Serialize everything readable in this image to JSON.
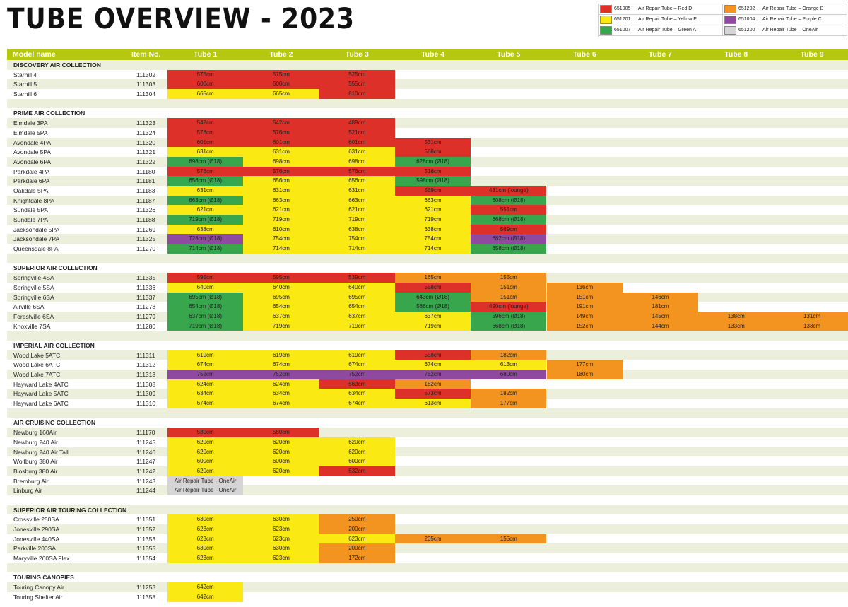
{
  "title": "TUBE OVERVIEW - 2023",
  "colors": {
    "R": "#dc3028",
    "Y": "#fbe914",
    "G": "#38a64c",
    "O": "#f39320",
    "P": "#8f4aa0",
    "A": "#d5d5d5"
  },
  "legend": [
    {
      "code": "651005",
      "label": "Air Repair Tube – Red D",
      "color": "R"
    },
    {
      "code": "651201",
      "label": "Air Repair Tube – Yellow E",
      "color": "Y"
    },
    {
      "code": "651007",
      "label": "Air Repair Tube – Green A",
      "color": "G"
    },
    {
      "code": "651202",
      "label": "Air Repair Tube – Orange B",
      "color": "O"
    },
    {
      "code": "651004",
      "label": "Air Repair Tube – Purple C",
      "color": "P"
    },
    {
      "code": "651200",
      "label": "Air Repair Tube – OneAir",
      "color": "A"
    }
  ],
  "headers": [
    "Model name",
    "Item No.",
    "Tube 1",
    "Tube 2",
    "Tube 3",
    "Tube 4",
    "Tube 5",
    "Tube 6",
    "Tube 7",
    "Tube 8",
    "Tube 9"
  ],
  "sections": [
    {
      "name": "DISCOVERY AIR COLLECTION",
      "rows": [
        {
          "model": "Starhill 4",
          "item": "111302",
          "cells": [
            [
              "575cm",
              "R"
            ],
            [
              "575cm",
              "R"
            ],
            [
              "525cm",
              "R"
            ]
          ]
        },
        {
          "model": "Starhill 5",
          "item": "111303",
          "cells": [
            [
              "600cm",
              "R"
            ],
            [
              "600cm",
              "R"
            ],
            [
              "555cm",
              "R"
            ]
          ]
        },
        {
          "model": "Starhill 6",
          "item": "111304",
          "cells": [
            [
              "665cm",
              "Y"
            ],
            [
              "665cm",
              "Y"
            ],
            [
              "610cm",
              "R"
            ]
          ]
        }
      ]
    },
    {
      "name": "PRIME AIR COLLECTION",
      "rows": [
        {
          "model": "Elmdale 3PA",
          "item": "111323",
          "cells": [
            [
              "542cm",
              "R"
            ],
            [
              "542cm",
              "R"
            ],
            [
              "489cm",
              "R"
            ]
          ]
        },
        {
          "model": "Elmdale 5PA",
          "item": "111324",
          "cells": [
            [
              "576cm",
              "R"
            ],
            [
              "576cm",
              "R"
            ],
            [
              "521cm",
              "R"
            ]
          ]
        },
        {
          "model": "Avondale 4PA",
          "item": "111320",
          "cells": [
            [
              "601cm",
              "R"
            ],
            [
              "601cm",
              "R"
            ],
            [
              "601cm",
              "R"
            ],
            [
              "531cm",
              "R"
            ]
          ]
        },
        {
          "model": "Avondale 5PA",
          "item": "111321",
          "cells": [
            [
              "631cm",
              "Y"
            ],
            [
              "631cm",
              "Y"
            ],
            [
              "631cm",
              "Y"
            ],
            [
              "568cm",
              "R"
            ]
          ]
        },
        {
          "model": "Avondale 6PA",
          "item": "111322",
          "cells": [
            [
              "698cm (Ø18)",
              "G"
            ],
            [
              "698cm",
              "Y"
            ],
            [
              "698cm",
              "Y"
            ],
            [
              "628cm (Ø18)",
              "G"
            ]
          ]
        },
        {
          "model": "Parkdale 4PA",
          "item": "111180",
          "cells": [
            [
              "576cm",
              "R"
            ],
            [
              "576cm",
              "R"
            ],
            [
              "576cm",
              "R"
            ],
            [
              "516cm",
              "R"
            ]
          ]
        },
        {
          "model": "Parkdale 6PA",
          "item": "111181",
          "cells": [
            [
              "656cm (Ø18)",
              "G"
            ],
            [
              "656cm",
              "Y"
            ],
            [
              "656cm",
              "Y"
            ],
            [
              "598cm (Ø18)",
              "G"
            ]
          ]
        },
        {
          "model": "Oakdale 5PA",
          "item": "111183",
          "cells": [
            [
              "631cm",
              "Y"
            ],
            [
              "631cm",
              "Y"
            ],
            [
              "631cm",
              "Y"
            ],
            [
              "569cm",
              "R"
            ],
            [
              "481cm (lounge)",
              "R"
            ]
          ]
        },
        {
          "model": "Knightdale 8PA",
          "item": "111187",
          "cells": [
            [
              "663cm (Ø18)",
              "G"
            ],
            [
              "663cm",
              "Y"
            ],
            [
              "663cm",
              "Y"
            ],
            [
              "663cm",
              "Y"
            ],
            [
              "608cm (Ø18)",
              "G"
            ]
          ]
        },
        {
          "model": "Sundale 5PA",
          "item": "111326",
          "cells": [
            [
              "621cm",
              "Y"
            ],
            [
              "621cm",
              "Y"
            ],
            [
              "621cm",
              "Y"
            ],
            [
              "621cm",
              "Y"
            ],
            [
              "551cm",
              "R"
            ]
          ]
        },
        {
          "model": "Sundale 7PA",
          "item": "111188",
          "cells": [
            [
              "719cm (Ø18)",
              "G"
            ],
            [
              "719cm",
              "Y"
            ],
            [
              "719cm",
              "Y"
            ],
            [
              "719cm",
              "Y"
            ],
            [
              "668cm (Ø18)",
              "G"
            ]
          ]
        },
        {
          "model": "Jacksondale 5PA",
          "item": "111269",
          "cells": [
            [
              "638cm",
              "Y"
            ],
            [
              "610cm",
              "Y"
            ],
            [
              "638cm",
              "Y"
            ],
            [
              "638cm",
              "Y"
            ],
            [
              "569cm",
              "R"
            ]
          ]
        },
        {
          "model": "Jacksondale 7PA",
          "item": "111325",
          "cells": [
            [
              "728cm (Ø18)",
              "P"
            ],
            [
              "754cm",
              "Y"
            ],
            [
              "754cm",
              "Y"
            ],
            [
              "754cm",
              "Y"
            ],
            [
              "682cm (Ø18)",
              "P"
            ]
          ]
        },
        {
          "model": "Queensdale 8PA",
          "item": "111270",
          "cells": [
            [
              "714cm (Ø18)",
              "G"
            ],
            [
              "714cm",
              "Y"
            ],
            [
              "714cm",
              "Y"
            ],
            [
              "714cm",
              "Y"
            ],
            [
              "658cm (Ø18)",
              "G"
            ]
          ]
        }
      ]
    },
    {
      "name": "SUPERIOR AIR COLLECTION",
      "rows": [
        {
          "model": "Springville 4SA",
          "item": "111335",
          "cells": [
            [
              "595cm",
              "R"
            ],
            [
              "595cm",
              "R"
            ],
            [
              "539cm",
              "R"
            ],
            [
              "165cm",
              "O"
            ],
            [
              "155cm",
              "O"
            ]
          ]
        },
        {
          "model": "Springville 5SA",
          "item": "111336",
          "cells": [
            [
              "640cm",
              "Y"
            ],
            [
              "640cm",
              "Y"
            ],
            [
              "640cm",
              "Y"
            ],
            [
              "558cm",
              "R"
            ],
            [
              "151cm",
              "O"
            ],
            [
              "136cm",
              "O"
            ]
          ]
        },
        {
          "model": "Springville 6SA",
          "item": "111337",
          "cells": [
            [
              "695cm (Ø18)",
              "G"
            ],
            [
              "695cm",
              "Y"
            ],
            [
              "695cm",
              "Y"
            ],
            [
              "643cm (Ø18)",
              "G"
            ],
            [
              "151cm",
              "O"
            ],
            [
              "151cm",
              "O"
            ],
            [
              "146cm",
              "O"
            ]
          ]
        },
        {
          "model": "Airville 6SA",
          "item": "111278",
          "cells": [
            [
              "654cm (Ø18)",
              "G"
            ],
            [
              "654cm",
              "Y"
            ],
            [
              "654cm",
              "Y"
            ],
            [
              "586cm (Ø18)",
              "G"
            ],
            [
              "490cm (lounge)",
              "R"
            ],
            [
              "191cm",
              "O"
            ],
            [
              "181cm",
              "O"
            ]
          ]
        },
        {
          "model": "Forestville 6SA",
          "item": "111279",
          "cells": [
            [
              "637cm (Ø18)",
              "G"
            ],
            [
              "637cm",
              "Y"
            ],
            [
              "637cm",
              "Y"
            ],
            [
              "637cm",
              "Y"
            ],
            [
              "596cm (Ø18)",
              "G"
            ],
            [
              "149cm",
              "O"
            ],
            [
              "145cm",
              "O"
            ],
            [
              "138cm",
              "O"
            ],
            [
              "131cm",
              "O"
            ]
          ]
        },
        {
          "model": "Knoxville 7SA",
          "item": "111280",
          "cells": [
            [
              "719cm (Ø18)",
              "G"
            ],
            [
              "719cm",
              "Y"
            ],
            [
              "719cm",
              "Y"
            ],
            [
              "719cm",
              "Y"
            ],
            [
              "668cm (Ø18)",
              "G"
            ],
            [
              "152cm",
              "O"
            ],
            [
              "144cm",
              "O"
            ],
            [
              "133cm",
              "O"
            ],
            [
              "133cm",
              "O"
            ]
          ]
        }
      ]
    },
    {
      "name": "IMPERIAL AIR COLLECTION",
      "rows": [
        {
          "model": "Wood Lake 5ATC",
          "item": "111311",
          "cells": [
            [
              "619cm",
              "Y"
            ],
            [
              "619cm",
              "Y"
            ],
            [
              "619cm",
              "Y"
            ],
            [
              "558cm",
              "R"
            ],
            [
              "182cm",
              "O"
            ]
          ]
        },
        {
          "model": "Wood Lake 6ATC",
          "item": "111312",
          "cells": [
            [
              "674cm",
              "Y"
            ],
            [
              "674cm",
              "Y"
            ],
            [
              "674cm",
              "Y"
            ],
            [
              "674cm",
              "Y"
            ],
            [
              "613cm",
              "Y"
            ],
            [
              "177cm",
              "O"
            ]
          ]
        },
        {
          "model": "Wood Lake 7ATC",
          "item": "111313",
          "cells": [
            [
              "752cm",
              "P"
            ],
            [
              "752cm",
              "P"
            ],
            [
              "752cm",
              "P"
            ],
            [
              "752cm",
              "P"
            ],
            [
              "680cm",
              "P"
            ],
            [
              "180cm",
              "O"
            ]
          ]
        },
        {
          "model": "Hayward Lake 4ATC",
          "item": "111308",
          "cells": [
            [
              "624cm",
              "Y"
            ],
            [
              "624cm",
              "Y"
            ],
            [
              "563cm",
              "R"
            ],
            [
              "182cm",
              "O"
            ]
          ]
        },
        {
          "model": "Hayward Lake 5ATC",
          "item": "111309",
          "cells": [
            [
              "634cm",
              "Y"
            ],
            [
              "634cm",
              "Y"
            ],
            [
              "634cm",
              "Y"
            ],
            [
              "573cm",
              "R"
            ],
            [
              "182cm",
              "O"
            ]
          ]
        },
        {
          "model": "Hayward Lake 6ATC",
          "item": "111310",
          "cells": [
            [
              "674cm",
              "Y"
            ],
            [
              "674cm",
              "Y"
            ],
            [
              "674cm",
              "Y"
            ],
            [
              "613cm",
              "Y"
            ],
            [
              "177cm",
              "O"
            ]
          ]
        }
      ]
    },
    {
      "name": "AIR CRUISING COLLECTION",
      "rows": [
        {
          "model": "Newburg 160Air",
          "item": "111170",
          "cells": [
            [
              "580cm",
              "R"
            ],
            [
              "580cm",
              "R"
            ]
          ]
        },
        {
          "model": "Newburg 240 Air",
          "item": "111245",
          "cells": [
            [
              "620cm",
              "Y"
            ],
            [
              "620cm",
              "Y"
            ],
            [
              "620cm",
              "Y"
            ]
          ]
        },
        {
          "model": "Newburg 240 Air Tall",
          "item": "111246",
          "cells": [
            [
              "620cm",
              "Y"
            ],
            [
              "620cm",
              "Y"
            ],
            [
              "620cm",
              "Y"
            ]
          ]
        },
        {
          "model": "Wolfburg 380 Air",
          "item": "111247",
          "cells": [
            [
              "600cm",
              "Y"
            ],
            [
              "600cm",
              "Y"
            ],
            [
              "600cm",
              "Y"
            ]
          ]
        },
        {
          "model": "Blosburg 380 Air",
          "item": "111242",
          "cells": [
            [
              "620cm",
              "Y"
            ],
            [
              "620cm",
              "Y"
            ],
            [
              "532cm",
              "R"
            ]
          ]
        },
        {
          "model": "Bremburg Air",
          "item": "111243",
          "cells": [
            [
              "Air Repair Tube - OneAir",
              "A"
            ]
          ]
        },
        {
          "model": "Linburg Air",
          "item": "111244",
          "cells": [
            [
              "Air Repair Tube - OneAir",
              "A"
            ]
          ]
        }
      ]
    },
    {
      "name": "SUPERIOR AIR TOURING COLLECTION",
      "rows": [
        {
          "model": "Crossville 250SA",
          "item": "111351",
          "cells": [
            [
              "630cm",
              "Y"
            ],
            [
              "630cm",
              "Y"
            ],
            [
              "250cm",
              "O"
            ]
          ]
        },
        {
          "model": "Jonesville 290SA",
          "item": "111352",
          "cells": [
            [
              "623cm",
              "Y"
            ],
            [
              "623cm",
              "Y"
            ],
            [
              "200cm",
              "O"
            ]
          ]
        },
        {
          "model": "Jonesville 440SA",
          "item": "111353",
          "cells": [
            [
              "623cm",
              "Y"
            ],
            [
              "623cm",
              "Y"
            ],
            [
              "623cm",
              "Y"
            ],
            [
              "205cm",
              "O"
            ],
            [
              "155cm",
              "O"
            ]
          ]
        },
        {
          "model": "Parkville 200SA",
          "item": "111355",
          "cells": [
            [
              "630cm",
              "Y"
            ],
            [
              "630cm",
              "Y"
            ],
            [
              "200cm",
              "O"
            ]
          ]
        },
        {
          "model": "Maryville 260SA Flex",
          "item": "111354",
          "cells": [
            [
              "623cm",
              "Y"
            ],
            [
              "623cm",
              "Y"
            ],
            [
              "172cm",
              "O"
            ]
          ]
        }
      ]
    },
    {
      "name": "TOURING CANOPIES",
      "rows": [
        {
          "model": "Touring Canopy Air",
          "item": "111253",
          "cells": [
            [
              "642cm",
              "Y"
            ]
          ]
        },
        {
          "model": "Touring Shelter Air",
          "item": "111358",
          "cells": [
            [
              "642cm",
              "Y"
            ]
          ]
        }
      ]
    }
  ]
}
